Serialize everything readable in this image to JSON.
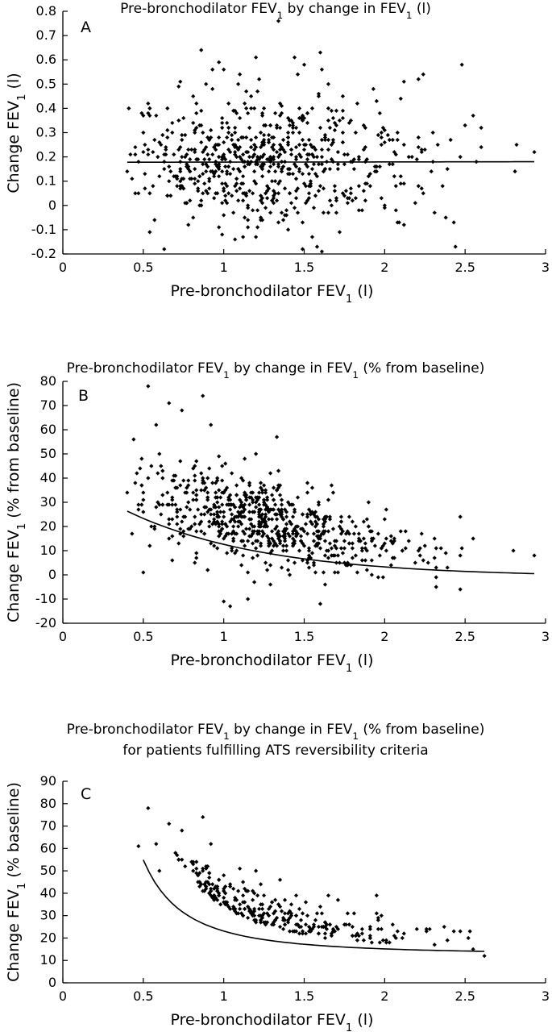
{
  "chart_data": [
    {
      "panel": "A",
      "type": "scatter",
      "title": "Pre-bronchodilator FEV1 by change in FEV1 (l)",
      "title_parts": [
        [
          "Pre-bronchodilator FEV",
          false
        ],
        [
          "1",
          true
        ],
        [
          " by change in FEV",
          false
        ],
        [
          "1",
          true
        ],
        [
          " (l)",
          false
        ]
      ],
      "xlabel": "Pre-bronchodilator FEV1 (l)",
      "xlabel_parts": [
        [
          "Pre-bronchodilator FEV",
          false
        ],
        [
          "1",
          true
        ],
        [
          " (l)",
          false
        ]
      ],
      "ylabel": "Change FEV1 (l)",
      "ylabel_parts": [
        [
          "Change FEV",
          false
        ],
        [
          "1",
          true
        ],
        [
          " (l)",
          false
        ]
      ],
      "xlim": [
        0,
        3
      ],
      "ylim": [
        -0.2,
        0.8
      ],
      "xticks": [
        "0",
        "0.5",
        "1",
        "1.5",
        "2",
        "2.5",
        "3"
      ],
      "yticks": [
        "-0.2",
        "-0.1",
        "0",
        "0.1",
        "0.2",
        "0.3",
        "0.4",
        "0.5",
        "0.6",
        "0.7",
        "0.8"
      ],
      "grid": false,
      "legend": "none",
      "marker_color": "#000000",
      "n_points": 700,
      "x_range_observed": [
        0.4,
        2.93
      ],
      "points": [
        [
          1.34,
          0.76
        ],
        [
          0.86,
          0.64
        ],
        [
          1.6,
          0.63
        ],
        [
          1.2,
          0.61
        ],
        [
          0.97,
          0.59
        ],
        [
          2.48,
          0.58
        ],
        [
          2.24,
          0.54
        ],
        [
          1.46,
          0.54
        ],
        [
          1.1,
          0.54
        ],
        [
          0.93,
          0.56
        ],
        [
          2.21,
          0.52
        ],
        [
          2.12,
          0.51
        ],
        [
          2.55,
          0.37
        ],
        [
          1.65,
          0.5
        ],
        [
          1.09,
          0.5
        ],
        [
          1.59,
          0.45
        ],
        [
          0.72,
          0.49
        ],
        [
          0.81,
          0.45
        ],
        [
          2.6,
          0.32
        ],
        [
          2.5,
          0.33
        ],
        [
          2.1,
          0.44
        ],
        [
          1.95,
          0.43
        ],
        [
          2.82,
          0.25
        ],
        [
          2.93,
          0.22
        ],
        [
          2.47,
          0.2
        ],
        [
          2.81,
          0.14
        ],
        [
          2.33,
          0.25
        ],
        [
          2.36,
          0.08
        ],
        [
          2.24,
          0.05
        ],
        [
          2.31,
          -0.03
        ],
        [
          2.43,
          -0.07
        ],
        [
          2.44,
          -0.17
        ],
        [
          2.0,
          -0.01
        ],
        [
          2.08,
          -0.07
        ],
        [
          1.55,
          -0.13
        ],
        [
          1.61,
          -0.19
        ],
        [
          1.4,
          -0.1
        ],
        [
          1.07,
          -0.14
        ],
        [
          0.99,
          -0.12
        ],
        [
          0.97,
          -0.09
        ],
        [
          1.2,
          -0.13
        ],
        [
          0.4,
          0.14
        ],
        [
          0.47,
          0.18
        ],
        [
          0.5,
          0.3
        ],
        [
          0.53,
          0.42
        ],
        [
          0.58,
          0.37
        ],
        [
          0.6,
          0.26
        ],
        [
          0.63,
          0.21
        ],
        [
          0.66,
          0.16
        ],
        [
          0.69,
          0.12
        ]
      ]
    },
    {
      "panel": "B",
      "type": "scatter",
      "title": "Pre-bronchodilator FEV1 by change in FEV1 (% from baseline)",
      "title_parts": [
        [
          "Pre-bronchodilator FEV",
          false
        ],
        [
          "1",
          true
        ],
        [
          " by change in FEV",
          false
        ],
        [
          "1",
          true
        ],
        [
          " (% from baseline)",
          false
        ]
      ],
      "xlabel": "Pre-bronchodilator FEV1 (l)",
      "xlabel_parts": [
        [
          "Pre-bronchodilator FEV",
          false
        ],
        [
          "1",
          true
        ],
        [
          " (l)",
          false
        ]
      ],
      "ylabel": "Change FEV1 (% from baseline)",
      "ylabel_parts": [
        [
          "Change FEV",
          false
        ],
        [
          "1",
          true
        ],
        [
          " (% from baseline)",
          false
        ]
      ],
      "xlim": [
        0,
        3
      ],
      "ylim": [
        -20,
        80
      ],
      "xticks": [
        "0",
        "0.5",
        "1",
        "1.5",
        "2",
        "2.5",
        "3"
      ],
      "yticks": [
        "-20",
        "-10",
        "0",
        "10",
        "20",
        "30",
        "40",
        "50",
        "60",
        "70",
        "80"
      ],
      "grid": false,
      "legend": "none",
      "marker_color": "#000000",
      "n_points": 700,
      "x_range_observed": [
        0.4,
        2.93
      ],
      "points": [
        [
          0.53,
          78
        ],
        [
          0.87,
          74
        ],
        [
          0.66,
          71
        ],
        [
          0.74,
          68
        ],
        [
          0.58,
          62
        ],
        [
          0.92,
          62
        ],
        [
          1.33,
          57
        ],
        [
          0.6,
          50
        ],
        [
          1.2,
          50
        ],
        [
          2.47,
          24
        ],
        [
          2.55,
          15
        ],
        [
          2.8,
          10
        ],
        [
          2.93,
          8
        ],
        [
          2.32,
          -5
        ],
        [
          2.47,
          -6
        ],
        [
          1.6,
          -12
        ],
        [
          1.04,
          -13
        ],
        [
          1.0,
          -11
        ],
        [
          1.15,
          -10
        ],
        [
          0.4,
          34
        ],
        [
          0.45,
          38
        ],
        [
          0.5,
          26
        ],
        [
          0.55,
          45
        ],
        [
          0.62,
          40
        ]
      ]
    },
    {
      "panel": "C",
      "type": "scatter",
      "title": "Pre-bronchodilator FEV1 by change in FEV1 (% from baseline) for patients fulfilling ATS reversibility criteria",
      "title_parts": [
        [
          "Pre-bronchodilator FEV",
          false
        ],
        [
          "1",
          true
        ],
        [
          " by change in FEV",
          false
        ],
        [
          "1",
          true
        ],
        [
          " (% from baseline)",
          false
        ]
      ],
      "title_line2": "for patients fulfilling ATS reversibility criteria",
      "xlabel": "Pre-bronchodilator FEV1 (l)",
      "xlabel_parts": [
        [
          "Pre-bronchodilator FEV",
          false
        ],
        [
          "1",
          true
        ],
        [
          " (l)",
          false
        ]
      ],
      "ylabel": "Change FEV1 (% baseline)",
      "ylabel_parts": [
        [
          "Change FEV",
          false
        ],
        [
          "1",
          true
        ],
        [
          " (% baseline)",
          false
        ]
      ],
      "xlim": [
        0,
        3
      ],
      "ylim": [
        0,
        90
      ],
      "xticks": [
        "0",
        "0.5",
        "1",
        "1.5",
        "2",
        "2.5",
        "3"
      ],
      "yticks": [
        "0",
        "10",
        "20",
        "30",
        "40",
        "50",
        "60",
        "70",
        "80",
        "90"
      ],
      "grid": false,
      "legend": "none",
      "marker_color": "#000000",
      "n_points": 300,
      "x_range_observed": [
        0.47,
        2.62
      ],
      "points": [
        [
          0.53,
          78
        ],
        [
          0.87,
          74
        ],
        [
          0.66,
          71
        ],
        [
          0.74,
          68
        ],
        [
          0.58,
          62
        ],
        [
          0.92,
          62
        ],
        [
          0.47,
          61
        ],
        [
          1.2,
          50
        ],
        [
          0.6,
          50
        ],
        [
          2.47,
          23
        ],
        [
          2.62,
          12
        ],
        [
          2.55,
          15
        ],
        [
          2.2,
          24
        ],
        [
          2.28,
          24
        ],
        [
          1.65,
          39
        ]
      ]
    }
  ]
}
